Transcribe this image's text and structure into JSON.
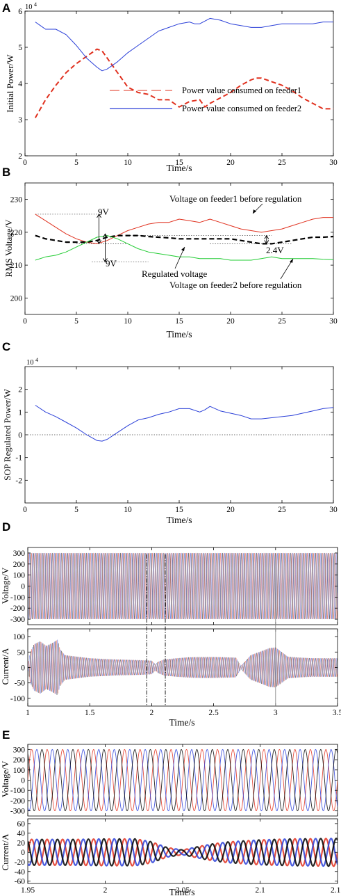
{
  "chart_data": [
    {
      "panel": "A",
      "type": "line",
      "ylabel": "Initial Power/W",
      "xlabel": "Time/s",
      "exponent_label": "10",
      "exponent_sup": "4",
      "xlim": [
        0,
        30
      ],
      "ylim": [
        2,
        6
      ],
      "xticks": [
        "0",
        "5",
        "10",
        "15",
        "20",
        "25",
        "30"
      ],
      "yticks": [
        "2",
        "3",
        "4",
        "5",
        "6"
      ],
      "legend": "center-right",
      "series": [
        {
          "name": "Power value consumed on feeder1",
          "color": "#e0301e",
          "dash": "dashed",
          "x": [
            1,
            2,
            3,
            4,
            5,
            6,
            7,
            7.5,
            8,
            9,
            10,
            11,
            12,
            13,
            14,
            15,
            16,
            17,
            17.5,
            18,
            19,
            20,
            21,
            22,
            22.5,
            23,
            24,
            25,
            26,
            27,
            28,
            29,
            30
          ],
          "y": [
            3.05,
            3.55,
            3.95,
            4.3,
            4.55,
            4.75,
            4.95,
            4.9,
            4.7,
            4.3,
            3.9,
            3.75,
            3.7,
            3.55,
            3.55,
            3.35,
            3.5,
            3.55,
            3.35,
            3.45,
            3.6,
            3.75,
            3.95,
            4.1,
            4.15,
            4.15,
            4.05,
            3.95,
            3.8,
            3.6,
            3.45,
            3.3,
            3.3
          ]
        },
        {
          "name": "Power value consumed on feeder2",
          "color": "#2a3fd8",
          "dash": "solid",
          "x": [
            1,
            1.5,
            2,
            2.5,
            3,
            4,
            5,
            6,
            7,
            7.5,
            8,
            9,
            10,
            11,
            12,
            13,
            14,
            15,
            16,
            16.5,
            17,
            18,
            19,
            20,
            21,
            22,
            23,
            24,
            25,
            26,
            27,
            28,
            29,
            30
          ],
          "y": [
            5.7,
            5.6,
            5.5,
            5.5,
            5.5,
            5.35,
            5.05,
            4.7,
            4.45,
            4.35,
            4.4,
            4.6,
            4.85,
            5.05,
            5.25,
            5.45,
            5.55,
            5.65,
            5.7,
            5.65,
            5.65,
            5.8,
            5.75,
            5.65,
            5.6,
            5.55,
            5.55,
            5.6,
            5.65,
            5.65,
            5.65,
            5.65,
            5.7,
            5.7
          ]
        }
      ]
    },
    {
      "panel": "B",
      "type": "line",
      "ylabel": "RMS Voltage/V",
      "xlabel": "Time/s",
      "xlim": [
        0,
        30
      ],
      "ylim": [
        195,
        235
      ],
      "xticks": [
        "0",
        "5",
        "10",
        "15",
        "20",
        "25",
        "30"
      ],
      "yticks": [
        "200",
        "210",
        "220",
        "230"
      ],
      "series": [
        {
          "name": "Voltage on feeder1 before regulation",
          "color": "#e0301e",
          "dash": "solid",
          "x": [
            1,
            2,
            3,
            4,
            5,
            6,
            7,
            8,
            9,
            10,
            11,
            12,
            13,
            14,
            15,
            16,
            17,
            18,
            19,
            20,
            21,
            22,
            23,
            24,
            25,
            26,
            27,
            28,
            29,
            30
          ],
          "y": [
            225.5,
            223.5,
            221.5,
            219.5,
            218,
            217,
            216.5,
            217.5,
            219,
            220.5,
            221.5,
            222.5,
            223,
            223,
            224,
            223.5,
            223,
            224,
            223,
            222,
            221,
            220.5,
            220,
            220.5,
            221,
            222,
            223,
            224,
            224.5,
            224.5
          ]
        },
        {
          "name": "Regulated voltage",
          "color": "#000000",
          "dash": "dashed",
          "x": [
            1,
            2,
            3,
            4,
            5,
            6,
            7,
            8,
            9,
            10,
            11,
            12,
            13,
            14,
            15,
            16,
            17,
            18,
            19,
            20,
            21,
            22,
            23,
            24,
            25,
            26,
            27,
            28,
            29,
            30
          ],
          "y": [
            219,
            218,
            217.5,
            217,
            217,
            217,
            217.5,
            218.5,
            219,
            219,
            219,
            218.7,
            218.5,
            218.3,
            218,
            218,
            218,
            218,
            218,
            218,
            217.5,
            217,
            216.5,
            216.5,
            217,
            217.5,
            218,
            218.5,
            218.5,
            218.7
          ]
        },
        {
          "name": "Voltage on feeder2 before regulation",
          "color": "#22cc33",
          "dash": "solid",
          "x": [
            1,
            2,
            3,
            4,
            5,
            6,
            7,
            8,
            9,
            10,
            11,
            12,
            13,
            14,
            15,
            16,
            17,
            18,
            19,
            20,
            21,
            22,
            23,
            24,
            25,
            26,
            27,
            28,
            29,
            30
          ],
          "y": [
            211.5,
            212.5,
            213,
            214,
            215.5,
            217,
            218.5,
            219,
            218,
            216.5,
            215,
            214,
            213.5,
            213,
            212.5,
            212.5,
            212,
            212,
            212,
            211.5,
            211.5,
            211.5,
            212,
            212.5,
            212,
            212,
            212,
            212,
            211.8,
            211.7
          ]
        }
      ],
      "annotations": [
        "9V",
        "9V",
        "2.4V"
      ]
    },
    {
      "panel": "C",
      "type": "line",
      "ylabel": "SOP Regulated Power/W",
      "xlabel": "Time/s",
      "exponent_label": "10",
      "exponent_sup": "4",
      "xlim": [
        0,
        30
      ],
      "ylim": [
        -3,
        3
      ],
      "xticks": [
        "0",
        "5",
        "10",
        "15",
        "20",
        "25",
        "30"
      ],
      "yticks": [
        "-2",
        "-1",
        "0",
        "1",
        "2"
      ],
      "series": [
        {
          "color": "#2a3fd8",
          "dash": "solid",
          "x": [
            1,
            2,
            3,
            4,
            5,
            6,
            7,
            7.5,
            8,
            9,
            10,
            11,
            12,
            13,
            14,
            15,
            16,
            17,
            17.5,
            18,
            19,
            20,
            21,
            22,
            23,
            24,
            25,
            26,
            27,
            28,
            29,
            30
          ],
          "y": [
            1.3,
            1.0,
            0.8,
            0.55,
            0.3,
            0.0,
            -0.25,
            -0.28,
            -0.2,
            0.1,
            0.4,
            0.65,
            0.75,
            0.9,
            1.0,
            1.15,
            1.15,
            1.0,
            1.1,
            1.25,
            1.05,
            0.95,
            0.85,
            0.7,
            0.7,
            0.75,
            0.8,
            0.85,
            0.95,
            1.05,
            1.15,
            1.2
          ]
        }
      ]
    },
    {
      "panel": "D",
      "type": "line",
      "xlabel": "Time/s",
      "xlim": [
        1,
        3.5
      ],
      "xticks": [
        "1",
        "1.5",
        "2",
        "2.5",
        "3",
        "3.5"
      ],
      "voltage": {
        "ylabel": "Voltage/V",
        "ylim": [
          -350,
          350
        ],
        "yticks": [
          "300",
          "200",
          "100",
          "0",
          "-100",
          "-200",
          "-300"
        ],
        "amplitude": 300
      },
      "current": {
        "ylabel": "Current/A",
        "ylim": [
          -125,
          125
        ],
        "yticks": [
          "100",
          "50",
          "0",
          "-50",
          "-100"
        ],
        "envelope_t": [
          1,
          1.02,
          1.05,
          1.1,
          1.15,
          1.2,
          1.24,
          1.26,
          1.3,
          1.4,
          1.5,
          1.6,
          1.7,
          1.8,
          1.9,
          1.95,
          2.0,
          2.03,
          2.05,
          2.1,
          2.2,
          2.3,
          2.4,
          2.5,
          2.6,
          2.68,
          2.72,
          2.8,
          2.9,
          2.95,
          3.0,
          3.05,
          3.1,
          3.2,
          3.3,
          3.4,
          3.5
        ],
        "envelope_a": [
          5,
          50,
          75,
          85,
          70,
          80,
          90,
          60,
          40,
          35,
          30,
          28,
          26,
          25,
          24,
          23,
          22,
          10,
          18,
          26,
          30,
          33,
          34,
          34,
          33,
          32,
          5,
          40,
          55,
          63,
          65,
          50,
          35,
          32,
          30,
          30,
          30
        ],
        "markers": [
          1.96,
          2.11,
          3.0
        ]
      },
      "colors": [
        "#e0301e",
        "#2a3fd8",
        "#000000"
      ]
    },
    {
      "panel": "E",
      "type": "line",
      "xlabel": "Time/s",
      "xlim": [
        1.95,
        2.15
      ],
      "xticks": [
        "1.95",
        "2",
        "2.05",
        "2.1",
        "2.15"
      ],
      "frequency_hz": 100,
      "voltage": {
        "ylabel": "Voltage/V",
        "ylim": [
          -350,
          350
        ],
        "yticks": [
          "300",
          "200",
          "100",
          "0",
          "-100",
          "-200",
          "-300"
        ],
        "amplitude": 300
      },
      "current": {
        "ylabel": "Current/A",
        "ylim": [
          -65,
          70
        ],
        "yticks": [
          "60",
          "40",
          "20",
          "0",
          "-20",
          "-40",
          "-60"
        ],
        "envelope_t": [
          1.95,
          1.98,
          2.0,
          2.02,
          2.03,
          2.04,
          2.05,
          2.06,
          2.07,
          2.08,
          2.1,
          2.12,
          2.15
        ],
        "envelope_a": [
          27,
          27,
          28,
          28,
          22,
          10,
          5,
          12,
          18,
          22,
          26,
          28,
          29
        ]
      },
      "colors": [
        "#e0301e",
        "#2a3fd8",
        "#000000"
      ]
    }
  ],
  "panel_letters": [
    "A",
    "B",
    "C",
    "D",
    "E"
  ]
}
